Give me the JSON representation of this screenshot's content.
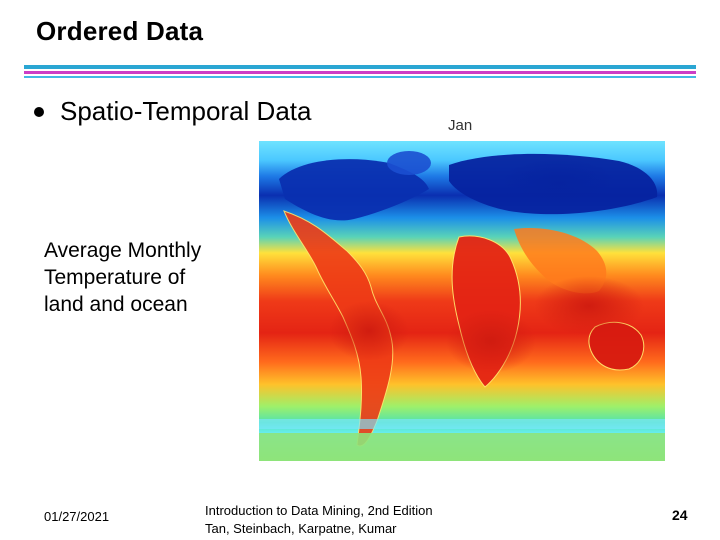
{
  "slide": {
    "title": "Ordered Data",
    "bullet": "Spatio-Temporal Data",
    "description": [
      "Average Monthly",
      "Temperature of",
      "land and ocean"
    ]
  },
  "figure": {
    "label": "Jan",
    "colors": {
      "cold": "#0a2fb0",
      "cool": "#49b6ff",
      "mild": "#7fe07a",
      "warm": "#ffd22a",
      "hot": "#e42414"
    }
  },
  "footer": {
    "date": "01/27/2021",
    "book_line1": "Introduction to Data Mining, 2nd Edition",
    "book_line2": "Tan, Steinbach, Karpatne, Kumar",
    "page": "24"
  }
}
